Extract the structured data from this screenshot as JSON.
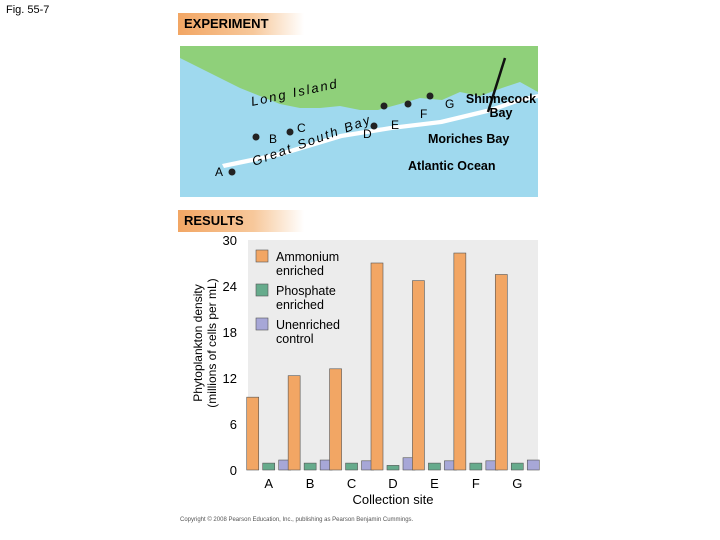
{
  "figure_label": "Fig. 55-7",
  "experiment_header": "EXPERIMENT",
  "results_header": "RESULTS",
  "map": {
    "labels": {
      "long_island": "Long Island",
      "great_south_bay": "Great South Bay",
      "shinnecock_bay": "Shinnecock Bay",
      "moriches_bay": "Moriches Bay",
      "atlantic_ocean": "Atlantic Ocean"
    },
    "sites": [
      "A",
      "B",
      "C",
      "D",
      "E",
      "F",
      "G"
    ],
    "colors": {
      "land": "#8fd07a",
      "water": "#9fd9ee",
      "marker": "#222222"
    }
  },
  "copyright": "Copyright © 2008 Pearson Education, Inc., publishing as Pearson Benjamin Cummings.",
  "chart_data": {
    "type": "bar",
    "xlabel": "Collection site",
    "ylabel": "Phytoplankton density (millions of cells per mL)",
    "ylim": [
      0,
      30
    ],
    "yticks": [
      0,
      6,
      12,
      18,
      24,
      30
    ],
    "grid": false,
    "legend_position": "top-left",
    "categories": [
      "A",
      "B",
      "C",
      "D",
      "E",
      "F",
      "G"
    ],
    "series": [
      {
        "name": "Ammonium enriched",
        "color": "#f2a664",
        "values": [
          9.5,
          12.3,
          13.2,
          27.0,
          24.7,
          28.3,
          25.5
        ]
      },
      {
        "name": "Phosphate enriched",
        "color": "#66ab8c",
        "values": [
          0.9,
          0.9,
          0.9,
          0.6,
          0.9,
          0.9,
          0.9
        ]
      },
      {
        "name": "Unenriched control",
        "color": "#a7a7d7",
        "values": [
          1.3,
          1.3,
          1.2,
          1.6,
          1.2,
          1.2,
          1.3
        ]
      }
    ]
  }
}
